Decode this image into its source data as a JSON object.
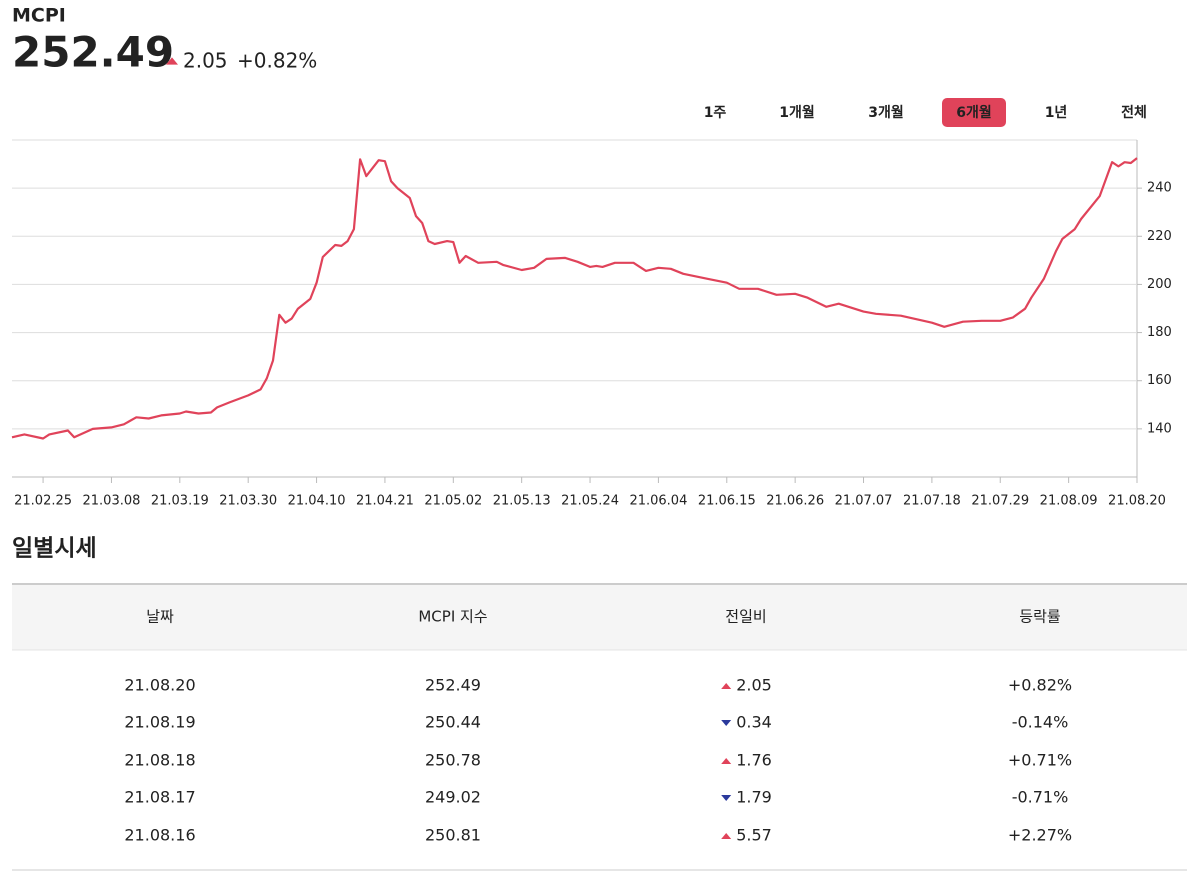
{
  "header": {
    "name": "MCPI",
    "value": "252.49",
    "change": "2.05",
    "change_pct": "+0.82%",
    "trend": "up"
  },
  "periods": {
    "options": [
      "1주",
      "1개월",
      "3개월",
      "6개월",
      "1년",
      "전체"
    ],
    "selected": 3
  },
  "chart_data": {
    "type": "line",
    "color": "#e0435a",
    "grid": true,
    "x": [
      "21.02.20",
      "21.02.22",
      "21.02.25",
      "21.02.26",
      "21.03.01",
      "21.03.02",
      "21.03.05",
      "21.03.08",
      "21.03.10",
      "21.03.12",
      "21.03.14",
      "21.03.16",
      "21.03.19",
      "21.03.20",
      "21.03.22",
      "21.03.24",
      "21.03.25",
      "21.03.27",
      "21.03.30",
      "21.04.01",
      "21.04.02",
      "21.04.03",
      "21.04.04",
      "21.04.05",
      "21.04.06",
      "21.04.07",
      "21.04.09",
      "21.04.10",
      "21.04.11",
      "21.04.13",
      "21.04.14",
      "21.04.15",
      "21.04.16",
      "21.04.17",
      "21.04.18",
      "21.04.20",
      "21.04.21",
      "21.04.22",
      "21.04.23",
      "21.04.25",
      "21.04.26",
      "21.04.27",
      "21.04.28",
      "21.04.29",
      "21.05.01",
      "21.05.02",
      "21.05.03",
      "21.05.04",
      "21.05.06",
      "21.05.09",
      "21.05.10",
      "21.05.13",
      "21.05.15",
      "21.05.17",
      "21.05.20",
      "21.05.22",
      "21.05.24",
      "21.05.25",
      "21.05.26",
      "21.05.28",
      "21.05.31",
      "21.06.02",
      "21.06.04",
      "21.06.06",
      "21.06.08",
      "21.06.12",
      "21.06.15",
      "21.06.17",
      "21.06.20",
      "21.06.23",
      "21.06.26",
      "21.06.28",
      "21.07.01",
      "21.07.03",
      "21.07.07",
      "21.07.09",
      "21.07.13",
      "21.07.18",
      "21.07.20",
      "21.07.23",
      "21.07.26",
      "21.07.29",
      "21.07.31",
      "21.08.02",
      "21.08.03",
      "21.08.05",
      "21.08.07",
      "21.08.08",
      "21.08.10",
      "21.08.11",
      "21.08.14",
      "21.08.16",
      "21.08.17",
      "21.08.18",
      "21.08.19",
      "21.08.20"
    ],
    "values": [
      136.5,
      137.7,
      136,
      137.7,
      139.3,
      136.5,
      140,
      140.6,
      141.9,
      144.8,
      144.3,
      145.6,
      146.4,
      147.2,
      146.4,
      146.8,
      148.9,
      151,
      153.9,
      156.4,
      161,
      168.4,
      187.4,
      184.1,
      185.8,
      189.9,
      194,
      200.7,
      211.4,
      216.4,
      216,
      218,
      223,
      252,
      245,
      251.6,
      251.2,
      242.9,
      240,
      235.9,
      228.4,
      225.5,
      218,
      216.8,
      218,
      217.6,
      209,
      211.8,
      209,
      209.4,
      208.1,
      206,
      206.9,
      210.6,
      211,
      209.4,
      207.3,
      207.7,
      207.3,
      209,
      209,
      205.6,
      206.9,
      206.5,
      204.4,
      202.3,
      200.7,
      198.2,
      198.2,
      195.7,
      196.1,
      194.5,
      190.7,
      192,
      188.7,
      187.8,
      187,
      184.1,
      182.4,
      184.5,
      184.9,
      184.9,
      186.2,
      189.9,
      194.5,
      202.3,
      214,
      218.9,
      223,
      227.2,
      236.7,
      250.81,
      249.02,
      250.78,
      250.44,
      252.49
    ],
    "xlim": [
      "21.02.20",
      "21.08.20"
    ],
    "xticks": [
      "21.02.25",
      "21.03.08",
      "21.03.19",
      "21.03.30",
      "21.04.10",
      "21.04.21",
      "21.05.02",
      "21.05.13",
      "21.05.24",
      "21.06.04",
      "21.06.15",
      "21.06.26",
      "21.07.07",
      "21.07.18",
      "21.07.29",
      "21.08.09",
      "21.08.20"
    ],
    "ylim": [
      120,
      260
    ],
    "yticks": [
      140,
      160,
      180,
      200,
      220,
      240
    ]
  },
  "table": {
    "title": "일별시세",
    "columns": [
      "날짜",
      "MCPI 지수",
      "전일비",
      "등락률"
    ],
    "rows": [
      [
        "21.08.20",
        "252.49",
        "2.05",
        "+0.82%"
      ],
      [
        "21.08.19",
        "250.44",
        "0.34",
        "-0.14%"
      ],
      [
        "21.08.18",
        "250.78",
        "1.76",
        "+0.71%"
      ],
      [
        "21.08.17",
        "249.02",
        "1.79",
        "-0.71%"
      ],
      [
        "21.08.16",
        "250.81",
        "5.57",
        "+2.27%"
      ]
    ],
    "trends": [
      "up",
      "down",
      "up",
      "down",
      "up"
    ]
  }
}
